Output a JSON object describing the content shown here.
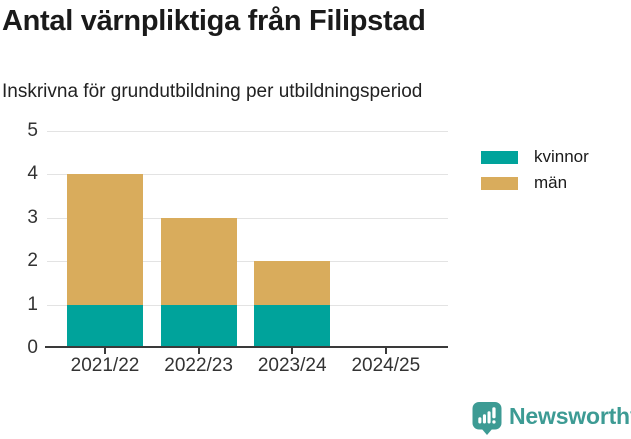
{
  "header": {
    "note": "title and subtitle are bound from chart_data"
  },
  "chart_data": {
    "type": "bar",
    "stacked": true,
    "title": "Antal värnpliktiga från Filipstad",
    "subtitle": "Inskrivna för grundutbildning per utbildningsperiod",
    "categories": [
      "2021/22",
      "2022/23",
      "2023/24",
      "2024/25"
    ],
    "series": [
      {
        "name": "kvinnor",
        "color": "#00A39B",
        "values": [
          1,
          1,
          1,
          0
        ]
      },
      {
        "name": "män",
        "color": "#D9AC5C",
        "values": [
          3,
          2,
          1,
          0
        ]
      }
    ],
    "totals": [
      4,
      3,
      2,
      0
    ],
    "ylim": [
      0,
      5
    ],
    "yticks": [
      0,
      1,
      2,
      3,
      4,
      5
    ],
    "grid": "horizontal",
    "legend_position": "top-right",
    "colors": {
      "axis": "#3a3a3a",
      "gridline": "#e3e3e3",
      "tick_text": "#333333",
      "title_text": "#1a1a1a"
    }
  },
  "footer": {
    "brand": "Newsworthy",
    "brand_color": "#3D9B94"
  }
}
